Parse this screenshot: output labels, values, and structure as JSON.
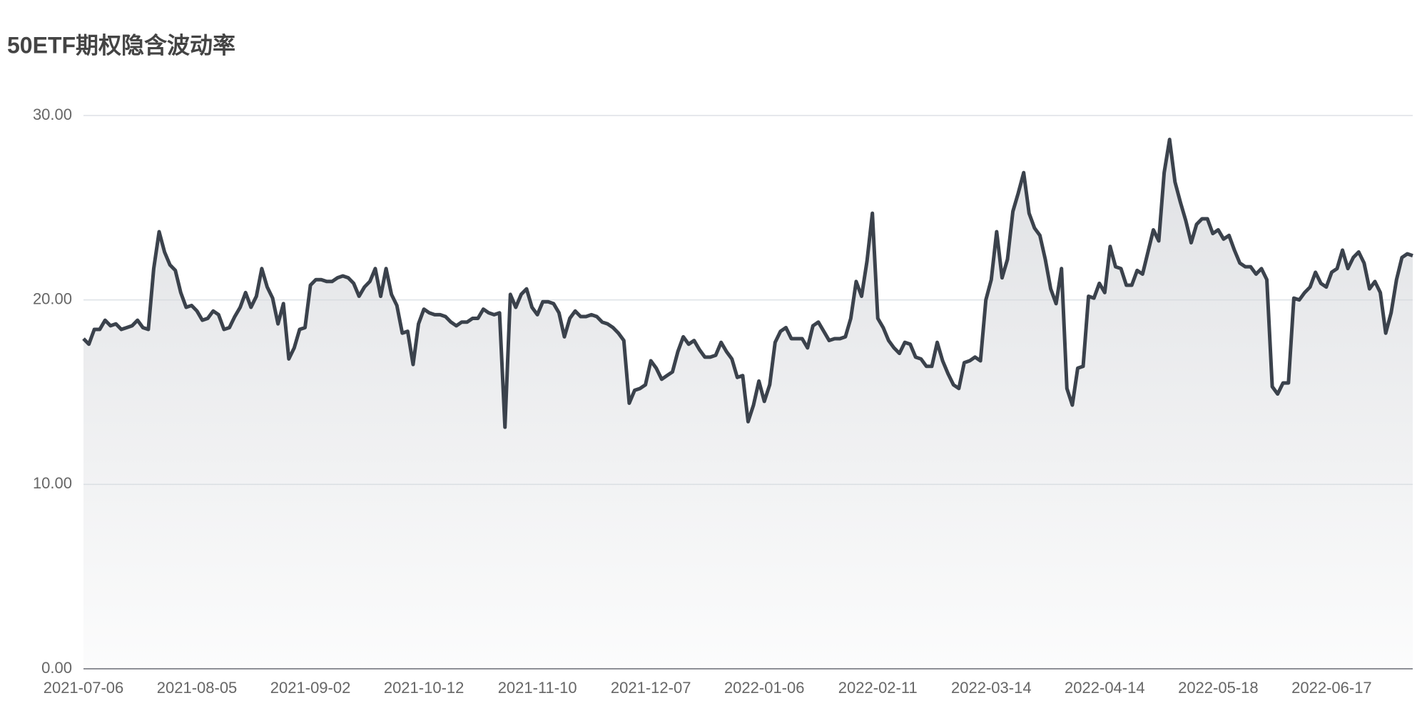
{
  "chart_data": {
    "type": "line",
    "title": "50ETF期权隐含波动率",
    "categories": [
      "2021-07-06",
      null,
      null,
      null,
      null,
      null,
      null,
      null,
      null,
      null,
      null,
      null,
      null,
      null,
      null,
      null,
      null,
      null,
      null,
      null,
      null,
      "2021-08-05",
      null,
      null,
      null,
      null,
      null,
      null,
      null,
      null,
      null,
      null,
      null,
      null,
      null,
      null,
      null,
      null,
      null,
      null,
      null,
      null,
      "2021-09-02",
      null,
      null,
      null,
      null,
      null,
      null,
      null,
      null,
      null,
      null,
      null,
      null,
      null,
      null,
      null,
      null,
      null,
      null,
      null,
      null,
      "2021-10-12",
      null,
      null,
      null,
      null,
      null,
      null,
      null,
      null,
      null,
      null,
      null,
      null,
      null,
      null,
      null,
      null,
      null,
      null,
      null,
      null,
      "2021-11-10",
      null,
      null,
      null,
      null,
      null,
      null,
      null,
      null,
      null,
      null,
      null,
      null,
      null,
      null,
      null,
      null,
      null,
      null,
      null,
      null,
      "2021-12-07",
      null,
      null,
      null,
      null,
      null,
      null,
      null,
      null,
      null,
      null,
      null,
      null,
      null,
      null,
      null,
      null,
      null,
      null,
      null,
      null,
      "2022-01-06",
      null,
      null,
      null,
      null,
      null,
      null,
      null,
      null,
      null,
      null,
      null,
      null,
      null,
      null,
      null,
      null,
      null,
      null,
      null,
      null,
      "2022-02-11",
      null,
      null,
      null,
      null,
      null,
      null,
      null,
      null,
      null,
      null,
      null,
      null,
      null,
      null,
      null,
      null,
      null,
      null,
      null,
      null,
      "2022-03-14",
      null,
      null,
      null,
      null,
      null,
      null,
      null,
      null,
      null,
      null,
      null,
      null,
      null,
      null,
      null,
      null,
      null,
      null,
      null,
      null,
      "2022-04-14",
      null,
      null,
      null,
      null,
      null,
      null,
      null,
      null,
      null,
      null,
      null,
      null,
      null,
      null,
      null,
      null,
      null,
      null,
      null,
      null,
      "2022-05-18",
      null,
      null,
      null,
      null,
      null,
      null,
      null,
      null,
      null,
      null,
      null,
      null,
      null,
      null,
      null,
      null,
      null,
      null,
      null,
      null,
      "2022-06-17",
      null,
      null,
      null,
      null,
      null,
      null,
      null,
      null,
      null,
      null,
      null,
      null,
      null,
      null,
      null
    ],
    "values": [
      17.9,
      17.6,
      18.4,
      18.4,
      18.9,
      18.6,
      18.7,
      18.4,
      18.5,
      18.6,
      18.9,
      18.5,
      18.4,
      21.7,
      23.7,
      22.6,
      21.9,
      21.6,
      20.4,
      19.6,
      19.7,
      19.4,
      18.9,
      19.0,
      19.4,
      19.2,
      18.4,
      18.5,
      19.1,
      19.6,
      20.4,
      19.6,
      20.2,
      21.7,
      20.7,
      20.1,
      18.7,
      19.8,
      16.8,
      17.4,
      18.4,
      18.5,
      20.8,
      21.1,
      21.1,
      21.0,
      21.0,
      21.2,
      21.3,
      21.2,
      20.9,
      20.2,
      20.7,
      21.0,
      21.7,
      20.2,
      21.7,
      20.3,
      19.7,
      18.2,
      18.3,
      16.5,
      18.7,
      19.5,
      19.3,
      19.2,
      19.2,
      19.1,
      18.8,
      18.6,
      18.8,
      18.8,
      19.0,
      19.0,
      19.5,
      19.3,
      19.2,
      19.3,
      13.1,
      20.3,
      19.6,
      20.3,
      20.6,
      19.6,
      19.2,
      19.9,
      19.9,
      19.8,
      19.3,
      18.0,
      19.0,
      19.4,
      19.1,
      19.1,
      19.2,
      19.1,
      18.8,
      18.7,
      18.5,
      18.2,
      17.8,
      14.4,
      15.1,
      15.2,
      15.4,
      16.7,
      16.3,
      15.7,
      15.9,
      16.1,
      17.2,
      18.0,
      17.6,
      17.8,
      17.3,
      16.9,
      16.9,
      17.0,
      17.7,
      17.2,
      16.8,
      15.8,
      15.9,
      13.4,
      14.3,
      15.6,
      14.5,
      15.4,
      17.7,
      18.3,
      18.5,
      17.9,
      17.9,
      17.9,
      17.4,
      18.6,
      18.8,
      18.3,
      17.8,
      17.9,
      17.9,
      18.0,
      19.0,
      21.0,
      20.2,
      22.1,
      24.7,
      19.0,
      18.5,
      17.8,
      17.4,
      17.1,
      17.7,
      17.6,
      16.9,
      16.8,
      16.4,
      16.4,
      17.7,
      16.7,
      16.0,
      15.4,
      15.2,
      16.6,
      16.7,
      16.9,
      16.7,
      20.0,
      21.1,
      23.7,
      21.2,
      22.2,
      24.8,
      25.8,
      26.9,
      24.7,
      23.9,
      23.5,
      22.2,
      20.6,
      19.8,
      21.7,
      15.2,
      14.3,
      16.3,
      16.4,
      20.2,
      20.1,
      20.9,
      20.4,
      22.9,
      21.8,
      21.7,
      20.8,
      20.8,
      21.6,
      21.4,
      22.6,
      23.8,
      23.2,
      26.9,
      28.7,
      26.4,
      25.3,
      24.3,
      23.1,
      24.1,
      24.4,
      24.4,
      23.6,
      23.8,
      23.3,
      23.5,
      22.7,
      22.0,
      21.8,
      21.8,
      21.4,
      21.7,
      21.1,
      15.3,
      14.9,
      15.5,
      15.5,
      20.1,
      20.0,
      20.4,
      20.7,
      21.5,
      20.9,
      20.7,
      21.5,
      21.7,
      22.7,
      21.7,
      22.3,
      22.6,
      22.0,
      20.6,
      21.0,
      20.4,
      18.2,
      19.3,
      21.1,
      22.3,
      22.5,
      22.4
    ],
    "color": "#3b424c",
    "ylim": [
      0,
      30
    ],
    "yticks": [
      {
        "value": 0,
        "label": "0.00"
      },
      {
        "value": 10,
        "label": "10.00"
      },
      {
        "value": 20,
        "label": "20.00"
      },
      {
        "value": 30,
        "label": "30.00"
      }
    ],
    "grid": true
  }
}
